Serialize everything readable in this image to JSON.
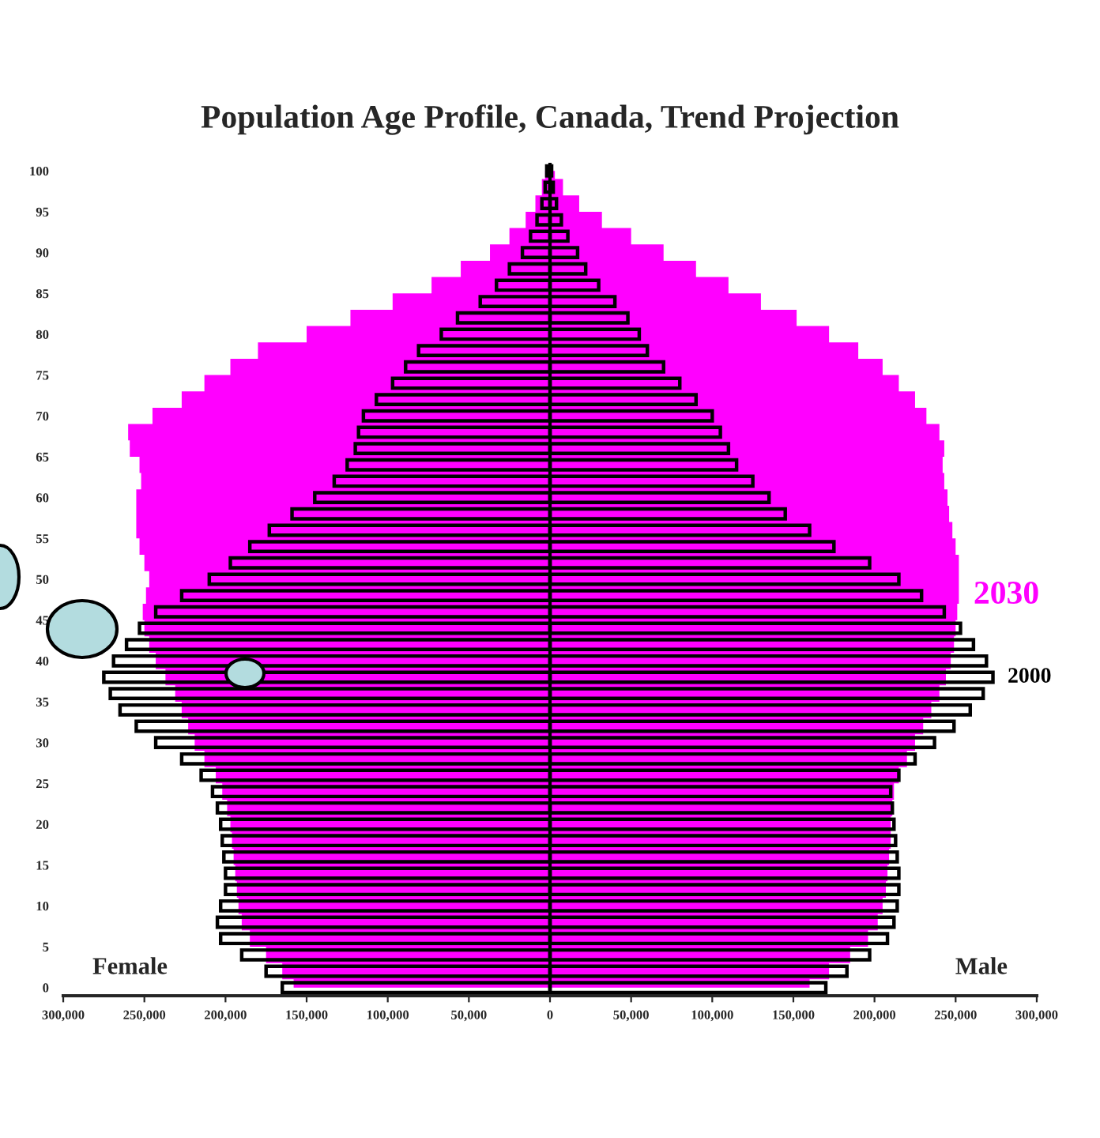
{
  "chart_data": {
    "type": "bar",
    "orientation": "horizontal",
    "title": "Population Age Profile, Canada, Trend Projection",
    "x": [
      0,
      2,
      4,
      6,
      8,
      10,
      12,
      14,
      16,
      18,
      20,
      22,
      24,
      26,
      28,
      30,
      32,
      34,
      36,
      38,
      40,
      42,
      44,
      46,
      48,
      50,
      52,
      54,
      56,
      58,
      60,
      62,
      64,
      66,
      68,
      70,
      72,
      74,
      76,
      78,
      80,
      82,
      84,
      86,
      88,
      90,
      92,
      94,
      96,
      98,
      100
    ],
    "series": [
      {
        "type": "area",
        "color": "#ff00ff",
        "values": [
          -158000,
          -165000,
          -175000,
          -185000,
          -190000,
          -192000,
          -193000,
          -194000,
          -195000,
          -196000,
          -197000,
          -199000,
          -202000,
          -206000,
          -213000,
          -219000,
          -223000,
          -227000,
          -231000,
          -237000,
          -243000,
          -247000,
          -250000,
          -251000,
          -249000,
          -247000,
          -250000,
          -253000,
          -255000,
          -255000,
          -255000,
          -252000,
          -253000,
          -259000,
          -260000,
          -245000,
          -227000,
          -213000,
          -197000,
          -180000,
          -150000,
          -123000,
          -97000,
          -73000,
          -55000,
          -37000,
          -25000,
          -15000,
          -9000,
          -5000,
          -3000
        ]
      },
      {
        "type": "area",
        "name": "2030",
        "color": "#ff00ff",
        "values": [
          160000,
          172000,
          185000,
          196000,
          202000,
          205000,
          207000,
          208000,
          209000,
          210000,
          210000,
          211000,
          212000,
          215000,
          220000,
          225000,
          230000,
          235000,
          240000,
          244000,
          247000,
          249000,
          250000,
          251000,
          252000,
          252000,
          252000,
          250000,
          248000,
          246000,
          245000,
          243000,
          242000,
          243000,
          240000,
          232000,
          225000,
          215000,
          205000,
          190000,
          172000,
          152000,
          130000,
          110000,
          90000,
          70000,
          50000,
          32000,
          18000,
          8000,
          3000
        ]
      },
      {
        "color": "#000000",
        "values": [
          -165000,
          -175000,
          -190000,
          -203000,
          -205000,
          -203000,
          -200000,
          -200000,
          -201000,
          -202000,
          -203000,
          -205000,
          -208000,
          -215000,
          -227000,
          -243000,
          -255000,
          -265000,
          -271000,
          -275000,
          -269000,
          -261000,
          -253000,
          -243000,
          -227000,
          -210000,
          -197000,
          -185000,
          -173000,
          -159000,
          -145000,
          -133000,
          -125000,
          -120000,
          -118000,
          -115000,
          -107000,
          -97000,
          -89000,
          -81000,
          -67000,
          -57000,
          -43000,
          -33000,
          -25000,
          -17000,
          -12000,
          -8000,
          -5000,
          -3000,
          -2000
        ]
      },
      {
        "name": "2000",
        "color": "#000000",
        "values": [
          170000,
          183000,
          197000,
          208000,
          212000,
          214000,
          215000,
          215000,
          214000,
          213000,
          212000,
          211000,
          210000,
          215000,
          225000,
          237000,
          249000,
          259000,
          267000,
          273000,
          269000,
          261000,
          253000,
          243000,
          229000,
          215000,
          197000,
          175000,
          160000,
          145000,
          135000,
          125000,
          115000,
          110000,
          105000,
          100000,
          90000,
          80000,
          70000,
          60000,
          55000,
          48000,
          40000,
          30000,
          22000,
          17000,
          11000,
          7000,
          4000,
          2000,
          1000
        ]
      }
    ],
    "xlim": [
      -300000,
      300000
    ],
    "xticks": [
      {
        "value": -300000,
        "label": "300,000"
      },
      {
        "value": -250000,
        "label": "250,000"
      },
      {
        "value": -200000,
        "label": "200,000"
      },
      {
        "value": -150000,
        "label": "150,000"
      },
      {
        "value": -100000,
        "label": "100,000"
      },
      {
        "value": -50000,
        "label": "50,000"
      },
      0,
      {
        "value": 50000,
        "label": "50,000"
      },
      {
        "value": 100000,
        "label": "100,000"
      },
      {
        "value": 150000,
        "label": "150,000"
      },
      {
        "value": 200000,
        "label": "200,000"
      },
      {
        "value": 250000,
        "label": "250,000"
      },
      {
        "value": 300000,
        "label": "300,000"
      }
    ],
    "ylim": [
      -1,
      101
    ],
    "yticks": [
      0,
      5,
      10,
      15,
      20,
      25,
      30,
      35,
      40,
      45,
      50,
      55,
      60,
      65,
      70,
      75,
      80,
      85,
      90,
      95,
      100
    ],
    "ref_lines": [
      {
        "axis": "x",
        "value": 0,
        "color": "#000000"
      }
    ],
    "annotations": [
      "Female",
      "Male"
    ],
    "grid": false,
    "legend": false
  }
}
